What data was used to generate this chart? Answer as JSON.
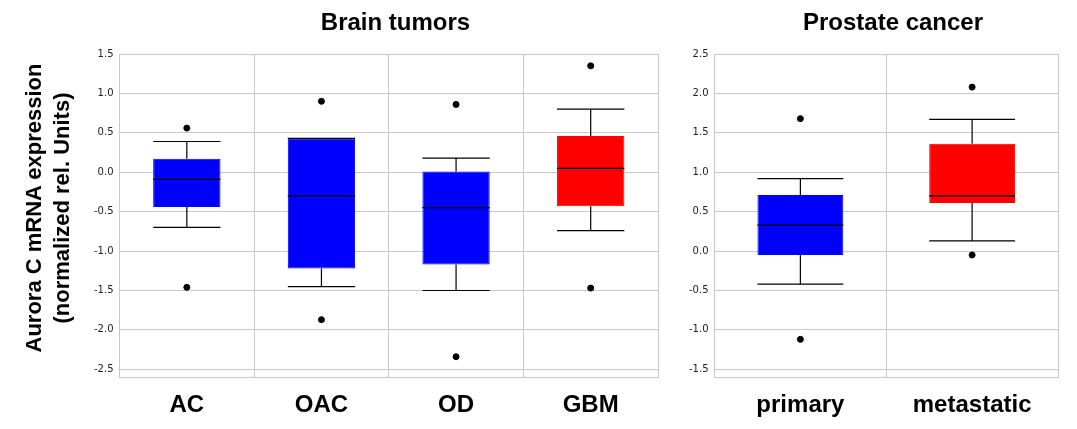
{
  "chart_data": [
    {
      "type": "box",
      "title": "Brain tumors",
      "ylabel": "Aurora C mRNA expression\n(normalized rel. Units)",
      "categories": [
        "AC",
        "OAC",
        "OD",
        "GBM"
      ],
      "colors": [
        "#0000ff",
        "#0000ff",
        "#0000ff",
        "#ff0000"
      ],
      "boxes": [
        {
          "low": -0.7,
          "q1": -0.44,
          "median": -0.09,
          "q3": 0.17,
          "high": 0.39,
          "outliers": [
            0.56,
            -1.46
          ]
        },
        {
          "low": -1.45,
          "q1": -1.22,
          "median": -0.3,
          "q3": 0.43,
          "high": 0.43,
          "outliers": [
            0.9,
            -1.87
          ]
        },
        {
          "low": -1.5,
          "q1": -1.17,
          "median": -0.45,
          "q3": 0.01,
          "high": 0.18,
          "outliers": [
            0.86,
            -2.34
          ]
        },
        {
          "low": -0.74,
          "q1": -0.43,
          "median": 0.05,
          "q3": 0.46,
          "high": 0.8,
          "outliers": [
            1.35,
            -1.47
          ]
        }
      ],
      "ylim": [
        -2.6,
        1.5
      ],
      "yticks": [
        -2.5,
        {
          "value": -2,
          "label": "-2.0"
        },
        -1.5,
        {
          "value": -1,
          "label": "-1.0"
        },
        -0.5,
        {
          "value": 0,
          "label": "0.0"
        },
        0.5,
        {
          "value": 1,
          "label": "1.0"
        },
        1.5
      ],
      "grid": true,
      "legend": false
    },
    {
      "type": "box",
      "title": "Prostate cancer",
      "categories": [
        "primary",
        "metastatic"
      ],
      "colors": [
        "#0000ff",
        "#ff0000"
      ],
      "boxes": [
        {
          "low": -0.42,
          "q1": -0.05,
          "median": 0.33,
          "q3": 0.71,
          "high": 0.92,
          "outliers": [
            1.68,
            -1.12
          ]
        },
        {
          "low": 0.13,
          "q1": 0.61,
          "median": 0.7,
          "q3": 1.36,
          "high": 1.67,
          "outliers": [
            2.08,
            -0.05
          ]
        }
      ],
      "ylim": [
        -1.6,
        2.5
      ],
      "yticks": [
        -1.5,
        {
          "value": -1,
          "label": "-1.0"
        },
        -0.5,
        {
          "value": 0,
          "label": "0.0"
        },
        0.5,
        {
          "value": 1,
          "label": "1.0"
        },
        1.5,
        {
          "value": 2,
          "label": "2.0"
        },
        2.5
      ],
      "grid": true,
      "legend": false
    }
  ]
}
